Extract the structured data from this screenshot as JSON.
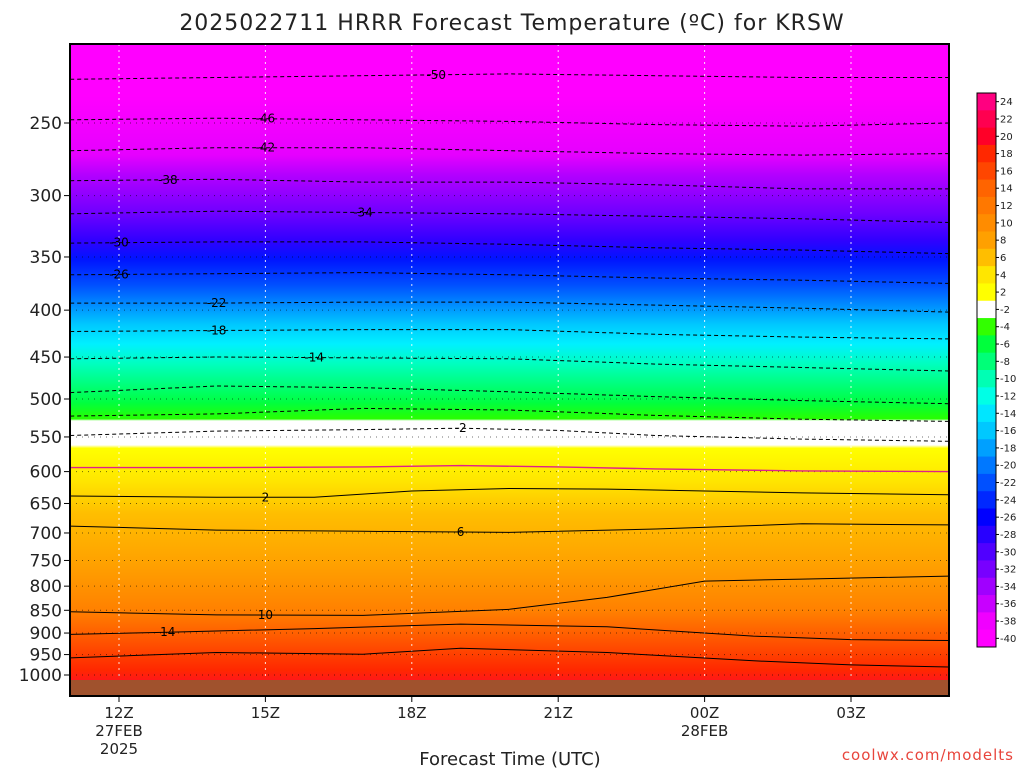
{
  "chart_data": {
    "type": "heatmap",
    "title": "2025022711 HRRR Forecast Temperature (ºC) for KRSW",
    "xlabel": "Forecast Time (UTC)",
    "ylabel": "",
    "credit": "coolwx.com/modelts",
    "x_ticks": [
      {
        "label": "12Z",
        "sub1": "27FEB",
        "sub2": "2025",
        "hour": 0
      },
      {
        "label": "15Z",
        "sub1": "",
        "sub2": "",
        "hour": 3
      },
      {
        "label": "18Z",
        "sub1": "",
        "sub2": "",
        "hour": 6
      },
      {
        "label": "21Z",
        "sub1": "",
        "sub2": "",
        "hour": 9
      },
      {
        "label": "00Z",
        "sub1": "28FEB",
        "sub2": "",
        "hour": 12
      },
      {
        "label": "03Z",
        "sub1": "",
        "sub2": "",
        "hour": 15
      }
    ],
    "x_range_hours": [
      -1,
      17
    ],
    "y_axis": {
      "unit": "hPa",
      "scale": "log",
      "range": [
        1050,
        200
      ]
    },
    "y_ticks": [
      250,
      300,
      350,
      400,
      450,
      500,
      550,
      600,
      650,
      700,
      750,
      800,
      850,
      900,
      950,
      1000
    ],
    "ground_color": "#a0522d",
    "colorbar": {
      "labels": [
        "24",
        "22",
        "20",
        "18",
        "16",
        "14",
        "12",
        "10",
        "8",
        "6",
        "4",
        "2",
        "-2",
        "-4",
        "-6",
        "-8",
        "-10",
        "-12",
        "-14",
        "-16",
        "-18",
        "-20",
        "-22",
        "-24",
        "-26",
        "-28",
        "-30",
        "-32",
        "-34",
        "-36",
        "-38",
        "-40"
      ],
      "colors": [
        "#ff0080",
        "#ff0050",
        "#ff0028",
        "#ff2800",
        "#ff4600",
        "#ff6400",
        "#ff7800",
        "#ff8c00",
        "#ffa000",
        "#ffbe00",
        "#ffe600",
        "#ffff00",
        "#ffffff",
        "#32ff00",
        "#00ff3c",
        "#00ff78",
        "#00ffb4",
        "#00ffe6",
        "#00e6ff",
        "#00c8ff",
        "#00a0ff",
        "#0078ff",
        "#0050ff",
        "#0028ff",
        "#0000ff",
        "#2800ff",
        "#5000ff",
        "#7800ff",
        "#a000ff",
        "#c800ff",
        "#f000ff",
        "#ff00ff"
      ]
    },
    "contours": [
      {
        "value": -50,
        "label": "-50",
        "label_hour": 6.5,
        "points": [
          [
            -1,
            224
          ],
          [
            2,
            223
          ],
          [
            5,
            222
          ],
          [
            8,
            221
          ],
          [
            11,
            222
          ],
          [
            14,
            223
          ],
          [
            17,
            223
          ]
        ]
      },
      {
        "value": -46,
        "label": "-46",
        "label_hour": 3,
        "points": [
          [
            -1,
            248
          ],
          [
            2,
            247
          ],
          [
            5,
            248
          ],
          [
            8,
            249
          ],
          [
            11,
            251
          ],
          [
            14,
            252
          ],
          [
            17,
            250
          ]
        ]
      },
      {
        "value": -42,
        "label": "-42",
        "label_hour": 3,
        "points": [
          [
            -1,
            268
          ],
          [
            2,
            266
          ],
          [
            5,
            266
          ],
          [
            8,
            268
          ],
          [
            11,
            270
          ],
          [
            14,
            271
          ],
          [
            17,
            270
          ]
        ]
      },
      {
        "value": -38,
        "label": "-38",
        "label_hour": 1,
        "points": [
          [
            -1,
            289
          ],
          [
            2,
            288
          ],
          [
            5,
            290
          ],
          [
            8,
            290
          ],
          [
            11,
            292
          ],
          [
            14,
            295
          ],
          [
            17,
            295
          ]
        ]
      },
      {
        "value": -34,
        "label": "-34",
        "label_hour": 5,
        "points": [
          [
            -1,
            314
          ],
          [
            2,
            312
          ],
          [
            5,
            313
          ],
          [
            8,
            314
          ],
          [
            11,
            316
          ],
          [
            14,
            318
          ],
          [
            17,
            321
          ]
        ]
      },
      {
        "value": -30,
        "label": "-30",
        "label_hour": 0,
        "points": [
          [
            -1,
            338
          ],
          [
            2,
            337
          ],
          [
            5,
            337
          ],
          [
            8,
            339
          ],
          [
            11,
            342
          ],
          [
            14,
            344
          ],
          [
            17,
            347
          ]
        ]
      },
      {
        "value": -26,
        "label": "-26",
        "label_hour": 0,
        "points": [
          [
            -1,
            366
          ],
          [
            2,
            365
          ],
          [
            5,
            364
          ],
          [
            8,
            366
          ],
          [
            11,
            369
          ],
          [
            14,
            371
          ],
          [
            17,
            374
          ]
        ]
      },
      {
        "value": -22,
        "label": "-22",
        "label_hour": 2,
        "points": [
          [
            -1,
            393
          ],
          [
            2,
            393
          ],
          [
            5,
            392
          ],
          [
            8,
            392
          ],
          [
            11,
            395
          ],
          [
            14,
            398
          ],
          [
            17,
            402
          ]
        ]
      },
      {
        "value": -18,
        "label": "-18",
        "label_hour": 2,
        "points": [
          [
            -1,
            422
          ],
          [
            2,
            421
          ],
          [
            5,
            420
          ],
          [
            8,
            420
          ],
          [
            11,
            425
          ],
          [
            14,
            428
          ],
          [
            17,
            430
          ]
        ]
      },
      {
        "value": -14,
        "label": "-14",
        "label_hour": 4,
        "points": [
          [
            -1,
            452
          ],
          [
            2,
            450
          ],
          [
            5,
            451
          ],
          [
            8,
            452
          ],
          [
            11,
            458
          ],
          [
            14,
            462
          ],
          [
            17,
            466
          ]
        ]
      },
      {
        "value": -10,
        "label": "",
        "label_hour": null,
        "points": [
          [
            -1,
            492
          ],
          [
            2,
            484
          ],
          [
            5,
            486
          ],
          [
            8,
            491
          ],
          [
            11,
            497
          ],
          [
            14,
            502
          ],
          [
            17,
            506
          ]
        ]
      },
      {
        "value": -6,
        "label": "",
        "label_hour": null,
        "points": [
          [
            -1,
            522
          ],
          [
            2,
            519
          ],
          [
            5,
            512
          ],
          [
            8,
            514
          ],
          [
            11,
            521
          ],
          [
            14,
            526
          ],
          [
            17,
            529
          ]
        ]
      },
      {
        "value": -2,
        "label": "-2",
        "label_hour": 7,
        "points": [
          [
            -1,
            548
          ],
          [
            2,
            542
          ],
          [
            5,
            540
          ],
          [
            7,
            538
          ],
          [
            9,
            541
          ],
          [
            11,
            548
          ],
          [
            14,
            553
          ],
          [
            17,
            556
          ]
        ]
      },
      {
        "value": 0,
        "label": "",
        "label_hour": null,
        "points": [
          [
            -1,
            594
          ],
          [
            2,
            594
          ],
          [
            5,
            593
          ],
          [
            7,
            591
          ],
          [
            9,
            593
          ],
          [
            11,
            596
          ],
          [
            14,
            599
          ],
          [
            17,
            600
          ]
        ]
      },
      {
        "value": 2,
        "label": "2",
        "label_hour": 3,
        "points": [
          [
            -1,
            638
          ],
          [
            2,
            640
          ],
          [
            4,
            640
          ],
          [
            6,
            630
          ],
          [
            8,
            626
          ],
          [
            10,
            627
          ],
          [
            12,
            630
          ],
          [
            14,
            633
          ],
          [
            17,
            636
          ]
        ]
      },
      {
        "value": 6,
        "label": "6",
        "label_hour": 7,
        "points": [
          [
            -1,
            688
          ],
          [
            2,
            695
          ],
          [
            5,
            697
          ],
          [
            8,
            699
          ],
          [
            11,
            693
          ],
          [
            14,
            684
          ],
          [
            17,
            686
          ]
        ]
      },
      {
        "value": 10,
        "label": "10",
        "label_hour": 3,
        "points": [
          [
            -1,
            853
          ],
          [
            2,
            860
          ],
          [
            5,
            861
          ],
          [
            8,
            848
          ],
          [
            10,
            823
          ],
          [
            12,
            790
          ],
          [
            14,
            786
          ],
          [
            17,
            780
          ]
        ]
      },
      {
        "value": 14,
        "label": "14",
        "label_hour": 1,
        "points": [
          [
            -1,
            903
          ],
          [
            1,
            898
          ],
          [
            4,
            890
          ],
          [
            7,
            880
          ],
          [
            10,
            886
          ],
          [
            13,
            907
          ],
          [
            15,
            915
          ],
          [
            17,
            917
          ]
        ]
      },
      {
        "value": 18,
        "label": "",
        "label_hour": null,
        "points": [
          [
            -1,
            958
          ],
          [
            2,
            945
          ],
          [
            5,
            949
          ],
          [
            7,
            935
          ],
          [
            10,
            945
          ],
          [
            13,
            965
          ],
          [
            15,
            975
          ],
          [
            17,
            980
          ]
        ]
      }
    ]
  }
}
